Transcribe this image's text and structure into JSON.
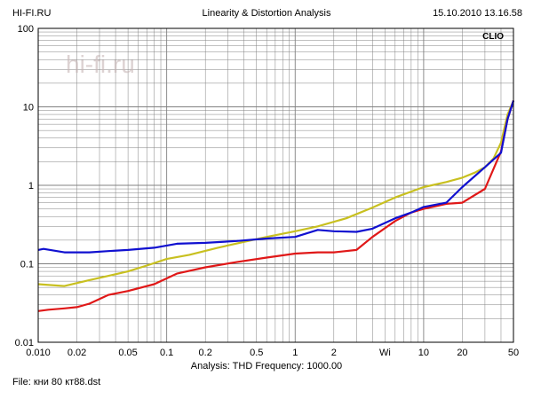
{
  "header": {
    "site": "HI-FI.RU",
    "title": "Linearity & Distortion Analysis",
    "timestamp": "15.10.2010 13.16.58"
  },
  "watermark": "hi-fi.ru",
  "brand": "CLIO",
  "footer": {
    "analysis": "Analysis: THD   Frequency: 1000.00",
    "file": "File: кни 80 кт88.dst"
  },
  "colors": {
    "background": "#ffffff",
    "grid": "#808080",
    "frame": "#000000",
    "series": [
      "#c8c020",
      "#e01818",
      "#1010d0"
    ]
  },
  "chart_data": {
    "type": "line",
    "title": "Linearity & Distortion Analysis",
    "xscale": "log",
    "yscale": "log",
    "xlim": [
      0.01,
      50
    ],
    "ylim": [
      0.01,
      100
    ],
    "grid": true,
    "xticks": [
      "0.010",
      "0.02",
      "0.05",
      "0.1",
      "0.2",
      "0.5",
      "1",
      "2",
      "Wi",
      "10",
      "20",
      "50"
    ],
    "yticks": [
      "100",
      "10",
      "1",
      "0.1",
      "0.01"
    ],
    "series": [
      {
        "color": "#c8c020",
        "x": [
          0.01,
          0.016,
          0.025,
          0.035,
          0.05,
          0.07,
          0.1,
          0.15,
          0.25,
          0.4,
          0.6,
          1.0,
          1.5,
          2.5,
          4.0,
          6.0,
          10,
          15,
          20,
          25,
          30,
          35,
          40,
          45,
          50
        ],
        "y": [
          0.055,
          0.052,
          0.062,
          0.07,
          0.08,
          0.095,
          0.115,
          0.13,
          0.16,
          0.19,
          0.22,
          0.26,
          0.3,
          0.38,
          0.52,
          0.7,
          0.95,
          1.1,
          1.25,
          1.45,
          1.7,
          2.2,
          3.5,
          8,
          12
        ]
      },
      {
        "color": "#e01818",
        "x": [
          0.01,
          0.012,
          0.016,
          0.02,
          0.025,
          0.035,
          0.05,
          0.08,
          0.12,
          0.2,
          0.35,
          0.6,
          1.0,
          1.5,
          2.0,
          3.0,
          4.0,
          6.0,
          8.0,
          10,
          15,
          20,
          30,
          40,
          45,
          50
        ],
        "y": [
          0.025,
          0.026,
          0.027,
          0.028,
          0.031,
          0.04,
          0.045,
          0.055,
          0.075,
          0.09,
          0.105,
          0.12,
          0.135,
          0.14,
          0.14,
          0.15,
          0.22,
          0.35,
          0.45,
          0.5,
          0.58,
          0.6,
          0.9,
          2.7,
          7,
          12
        ]
      },
      {
        "color": "#1010d0",
        "x": [
          0.01,
          0.011,
          0.016,
          0.025,
          0.035,
          0.05,
          0.08,
          0.12,
          0.2,
          0.35,
          0.6,
          1.0,
          1.5,
          2.0,
          3.0,
          4.0,
          6.0,
          8.0,
          10,
          15,
          20,
          30,
          40,
          45,
          50
        ],
        "y": [
          0.15,
          0.155,
          0.14,
          0.14,
          0.145,
          0.15,
          0.16,
          0.18,
          0.185,
          0.195,
          0.21,
          0.22,
          0.27,
          0.26,
          0.255,
          0.28,
          0.38,
          0.45,
          0.53,
          0.6,
          0.95,
          1.7,
          2.6,
          7,
          12
        ]
      }
    ]
  }
}
